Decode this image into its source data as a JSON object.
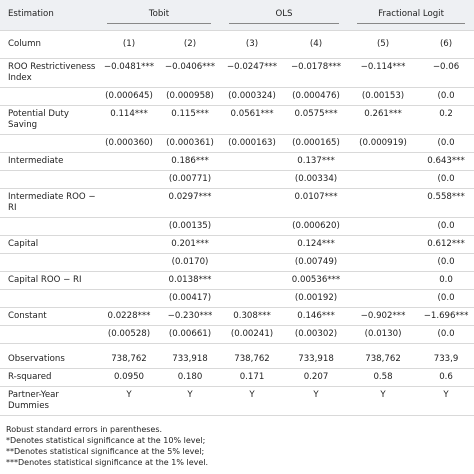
{
  "table": {
    "header": {
      "label": "Estimation",
      "groups": [
        "Tobit",
        "OLS",
        "Fractional Logit"
      ]
    },
    "column_row": {
      "label": "Column",
      "cells": [
        "(1)",
        "(2)",
        "(3)",
        "(4)",
        "(5)",
        "(6)"
      ]
    },
    "rows": [
      {
        "label": "ROO Restrictiveness Index",
        "cells": [
          "−0.0481***",
          "−0.0406***",
          "−0.0247***",
          "−0.0178***",
          "−0.114***",
          "−0.06"
        ]
      },
      {
        "label": null,
        "cells": [
          "(0.000645)",
          "(0.000958)",
          "(0.000324)",
          "(0.000476)",
          "(0.00153)",
          "(0.0"
        ]
      },
      {
        "label": "Potential Duty Saving",
        "cells": [
          "0.114***",
          "0.115***",
          "0.0561***",
          "0.0575***",
          "0.261***",
          "0.2"
        ]
      },
      {
        "label": null,
        "cells": [
          "(0.000360)",
          "(0.000361)",
          "(0.000163)",
          "(0.000165)",
          "(0.000919)",
          "(0.0"
        ]
      },
      {
        "label": "Intermediate",
        "cells": [
          null,
          "0.186***",
          null,
          "0.137***",
          null,
          "0.643***"
        ]
      },
      {
        "label": null,
        "cells": [
          null,
          "(0.00771)",
          null,
          "(0.00334)",
          null,
          "(0.0"
        ]
      },
      {
        "label": "Intermediate ROO − RI",
        "cells": [
          null,
          "0.0297***",
          null,
          "0.0107***",
          null,
          "0.558***"
        ]
      },
      {
        "label": null,
        "cells": [
          null,
          "(0.00135)",
          null,
          "(0.000620)",
          null,
          "(0.0"
        ]
      },
      {
        "label": "Capital",
        "cells": [
          null,
          "0.201***",
          null,
          "0.124***",
          null,
          "0.612***"
        ]
      },
      {
        "label": null,
        "cells": [
          null,
          "(0.0170)",
          null,
          "(0.00749)",
          null,
          "(0.0"
        ]
      },
      {
        "label": "Capital ROO − RI",
        "cells": [
          null,
          "0.0138***",
          null,
          "0.00536***",
          null,
          "0.0"
        ]
      },
      {
        "label": null,
        "cells": [
          null,
          "(0.00417)",
          null,
          "(0.00192)",
          null,
          "(0.0"
        ]
      },
      {
        "label": "Constant",
        "cells": [
          "0.0228***",
          "−0.230***",
          "0.308***",
          "0.146***",
          "−0.902***",
          "−1.696***"
        ]
      },
      {
        "label": null,
        "cells": [
          "(0.00528)",
          "(0.00661)",
          "(0.00241)",
          "(0.00302)",
          "(0.0130)",
          "(0.0"
        ]
      },
      {
        "label": "Observations",
        "cells": [
          "738,762",
          "733,918",
          "738,762",
          "733,918",
          "738,762",
          "733,9"
        ]
      },
      {
        "label": "R-squared",
        "cells": [
          "0.0950",
          "0.180",
          "0.171",
          "0.207",
          "0.58",
          "0.6"
        ]
      },
      {
        "label": "Partner-Year Dummies",
        "cells": [
          "Y",
          "Y",
          "Y",
          "Y",
          "Y",
          "Y"
        ]
      }
    ]
  },
  "notes": [
    "Robust standard errors in parentheses.",
    "*Denotes statistical significance at the 10% level;",
    "**Denotes statistical significance at the 5% level;",
    "***Denotes statistical significance at the 1% level."
  ]
}
